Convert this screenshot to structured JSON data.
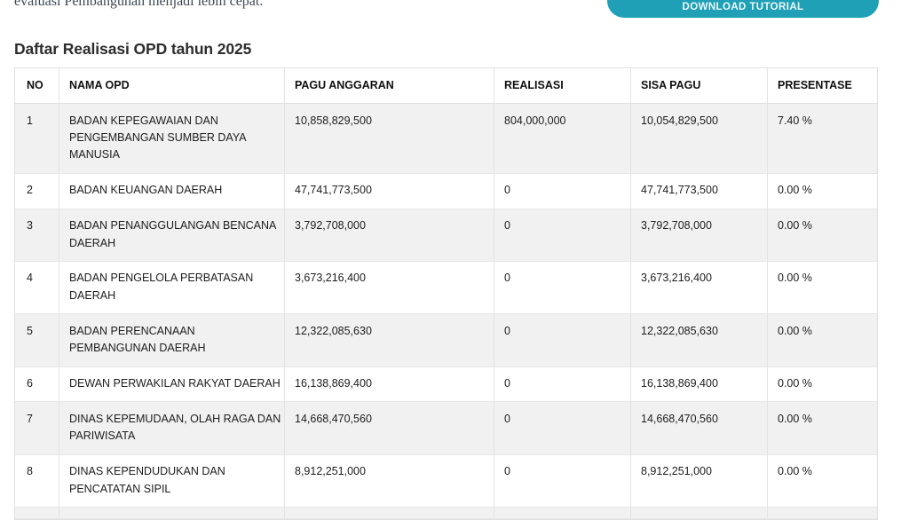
{
  "hero": {
    "intro_text": "evaluasi Pembangunan menjadi lebih cepat.",
    "download_button_label": "DOWNLOAD TUTORIAL"
  },
  "section": {
    "title": "Daftar Realisasi OPD tahun 2025"
  },
  "table": {
    "columns": [
      "NO",
      "NAMA OPD",
      "PAGU ANGGARAN",
      "REALISASI",
      "SISA PAGU",
      "PRESENTASE"
    ],
    "rows": [
      {
        "no": "1",
        "nama_opd": "BADAN KEPEGAWAIAN DAN\nPENGEMBANGAN SUMBER DAYA\nMANUSIA",
        "pagu_anggaran": "10,858,829,500",
        "realisasi": "804,000,000",
        "sisa_pagu": "10,054,829,500",
        "presentase": "7.40 %"
      },
      {
        "no": "2",
        "nama_opd": "BADAN KEUANGAN DAERAH",
        "pagu_anggaran": "47,741,773,500",
        "realisasi": "0",
        "sisa_pagu": "47,741,773,500",
        "presentase": "0.00 %"
      },
      {
        "no": "3",
        "nama_opd": "BADAN PENANGGULANGAN BENCANA\nDAERAH",
        "pagu_anggaran": "3,792,708,000",
        "realisasi": "0",
        "sisa_pagu": "3,792,708,000",
        "presentase": "0.00 %"
      },
      {
        "no": "4",
        "nama_opd": "BADAN PENGELOLA PERBATASAN\nDAERAH",
        "pagu_anggaran": "3,673,216,400",
        "realisasi": "0",
        "sisa_pagu": "3,673,216,400",
        "presentase": "0.00 %"
      },
      {
        "no": "5",
        "nama_opd": "BADAN PERENCANAAN\nPEMBANGUNAN DAERAH",
        "pagu_anggaran": "12,322,085,630",
        "realisasi": "0",
        "sisa_pagu": "12,322,085,630",
        "presentase": "0.00 %"
      },
      {
        "no": "6",
        "nama_opd": "DEWAN PERWAKILAN RAKYAT DAERAH",
        "pagu_anggaran": "16,138,869,400",
        "realisasi": "0",
        "sisa_pagu": "16,138,869,400",
        "presentase": "0.00 %"
      },
      {
        "no": "7",
        "nama_opd": "DINAS KEPEMUDAAN, OLAH RAGA DAN\nPARIWISATA",
        "pagu_anggaran": "14,668,470,560",
        "realisasi": "0",
        "sisa_pagu": "14,668,470,560",
        "presentase": "0.00 %"
      },
      {
        "no": "8",
        "nama_opd": "DINAS KEPENDUDUKAN DAN\nPENCATATAN SIPIL",
        "pagu_anggaran": "8,912,251,000",
        "realisasi": "0",
        "sisa_pagu": "8,912,251,000",
        "presentase": "0.00 %"
      }
    ]
  },
  "colors": {
    "accent_teal": "#1fa0b6",
    "row_alt_bg": "#f1f1f1",
    "cell_border": "#e3e3e3",
    "header_text": "#101010",
    "body_text": "#1d1d1d"
  }
}
